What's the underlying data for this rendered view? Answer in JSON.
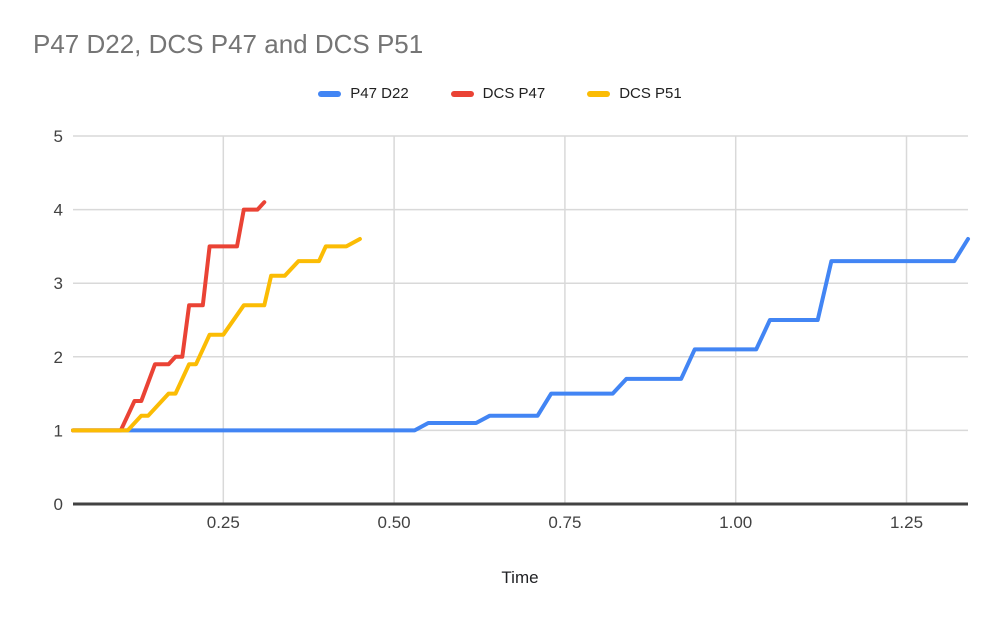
{
  "title": "P47 D22, DCS P47 and DCS P51",
  "legend": {
    "items": [
      {
        "label": "P47 D22",
        "color": "#4285F4"
      },
      {
        "label": "DCS P47",
        "color": "#EA4335"
      },
      {
        "label": "DCS P51",
        "color": "#FBBC04"
      }
    ]
  },
  "chart_data": {
    "type": "line",
    "title": "P47 D22, DCS P47 and DCS P51",
    "xlabel": "Time",
    "ylabel": "",
    "xlim": [
      0.03,
      1.34
    ],
    "ylim": [
      0,
      5
    ],
    "grid": true,
    "legend_position": "top-center",
    "line_style": "stepped plateaus with short ramps, round joins",
    "xticks": [
      {
        "v": 0.25,
        "label": "0.25"
      },
      {
        "v": 0.5,
        "label": "0.50"
      },
      {
        "v": 0.75,
        "label": "0.75"
      },
      {
        "v": 1.0,
        "label": "1.00"
      },
      {
        "v": 1.25,
        "label": "1.25"
      }
    ],
    "yticks": [
      {
        "v": 0,
        "label": "0"
      },
      {
        "v": 1,
        "label": "1"
      },
      {
        "v": 2,
        "label": "2"
      },
      {
        "v": 3,
        "label": "3"
      },
      {
        "v": 4,
        "label": "4"
      },
      {
        "v": 5,
        "label": "5"
      }
    ],
    "series": [
      {
        "name": "P47 D22",
        "color": "#4285F4",
        "points": [
          [
            0.03,
            1.0
          ],
          [
            0.53,
            1.0
          ],
          [
            0.55,
            1.1
          ],
          [
            0.62,
            1.1
          ],
          [
            0.64,
            1.2
          ],
          [
            0.71,
            1.2
          ],
          [
            0.73,
            1.5
          ],
          [
            0.82,
            1.5
          ],
          [
            0.84,
            1.7
          ],
          [
            0.92,
            1.7
          ],
          [
            0.94,
            2.1
          ],
          [
            1.03,
            2.1
          ],
          [
            1.05,
            2.5
          ],
          [
            1.12,
            2.5
          ],
          [
            1.14,
            3.3
          ],
          [
            1.32,
            3.3
          ],
          [
            1.34,
            3.6
          ]
        ]
      },
      {
        "name": "DCS P47",
        "color": "#EA4335",
        "points": [
          [
            0.03,
            1.0
          ],
          [
            0.1,
            1.0
          ],
          [
            0.12,
            1.4
          ],
          [
            0.13,
            1.4
          ],
          [
            0.15,
            1.9
          ],
          [
            0.17,
            1.9
          ],
          [
            0.18,
            2.0
          ],
          [
            0.19,
            2.0
          ],
          [
            0.2,
            2.7
          ],
          [
            0.22,
            2.7
          ],
          [
            0.23,
            3.5
          ],
          [
            0.27,
            3.5
          ],
          [
            0.28,
            4.0
          ],
          [
            0.3,
            4.0
          ],
          [
            0.31,
            4.1
          ]
        ]
      },
      {
        "name": "DCS P51",
        "color": "#FBBC04",
        "points": [
          [
            0.03,
            1.0
          ],
          [
            0.11,
            1.0
          ],
          [
            0.13,
            1.2
          ],
          [
            0.14,
            1.2
          ],
          [
            0.17,
            1.5
          ],
          [
            0.18,
            1.5
          ],
          [
            0.2,
            1.9
          ],
          [
            0.21,
            1.9
          ],
          [
            0.23,
            2.3
          ],
          [
            0.25,
            2.3
          ],
          [
            0.28,
            2.7
          ],
          [
            0.31,
            2.7
          ],
          [
            0.32,
            3.1
          ],
          [
            0.34,
            3.1
          ],
          [
            0.36,
            3.3
          ],
          [
            0.39,
            3.3
          ],
          [
            0.4,
            3.5
          ],
          [
            0.43,
            3.5
          ],
          [
            0.45,
            3.6
          ]
        ]
      }
    ]
  },
  "colors": {
    "background": "#ffffff",
    "title_text": "#757575",
    "tick_text": "#424242",
    "axis_line": "#424242",
    "gridline": "#d9d9d9"
  }
}
